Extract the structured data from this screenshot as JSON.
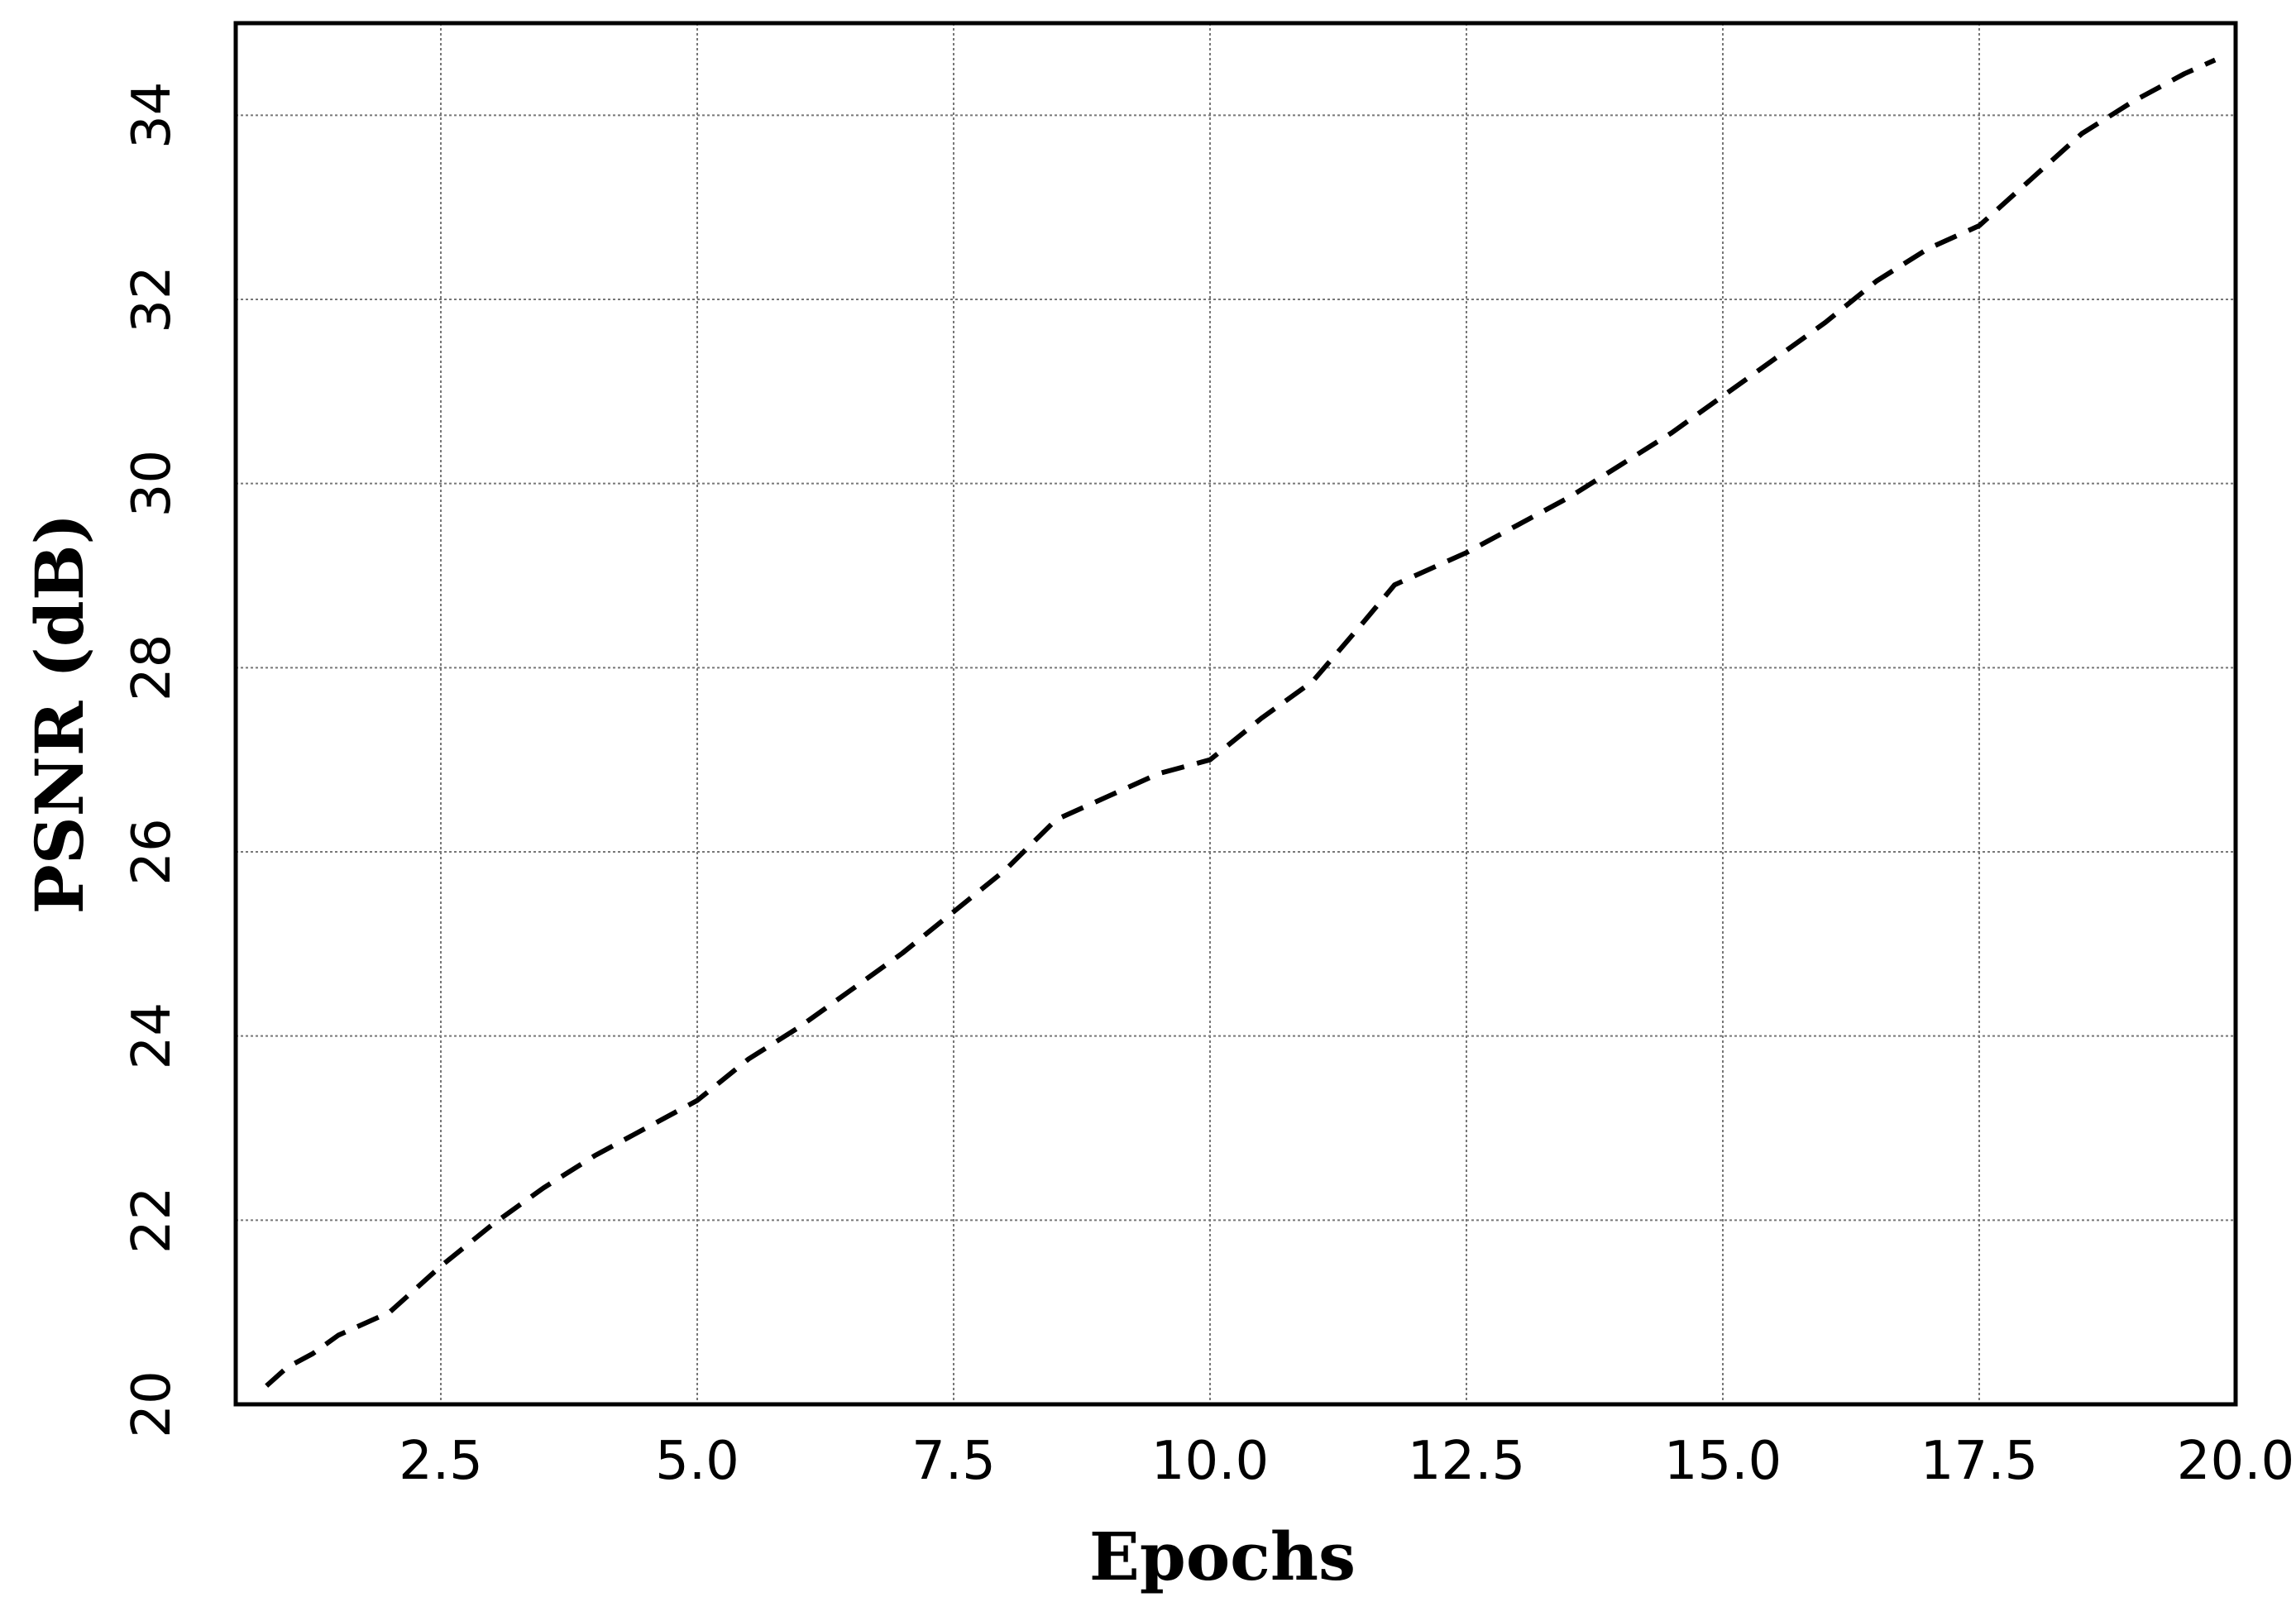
{
  "chart_data": {
    "type": "line",
    "title": "",
    "xlabel": "Epochs",
    "ylabel": "PSNR (dB)",
    "xlim": [
      0.5,
      20.0
    ],
    "ylim": [
      20,
      35
    ],
    "x_ticks": [
      2.5,
      5.0,
      7.5,
      10.0,
      12.5,
      15.0,
      17.5,
      20.0
    ],
    "x_tick_labels": [
      "2.5",
      "5.0",
      "7.5",
      "10.0",
      "12.5",
      "15.0",
      "17.5",
      "20.0"
    ],
    "y_ticks": [
      20,
      22,
      24,
      26,
      28,
      30,
      32,
      34
    ],
    "y_tick_labels": [
      "20",
      "22",
      "24",
      "26",
      "28",
      "30",
      "32",
      "34"
    ],
    "grid": true,
    "legend": "none",
    "series": [
      {
        "line_style": "dashed",
        "color": "#000000",
        "x": [
          0.8,
          1.0,
          1.25,
          1.5,
          2.0,
          2.5,
          3.0,
          3.5,
          4.0,
          4.5,
          5.0,
          5.5,
          6.0,
          6.5,
          7.0,
          7.5,
          8.0,
          8.5,
          9.0,
          9.5,
          10.0,
          10.5,
          11.0,
          11.5,
          11.8,
          12.0,
          12.5,
          13.0,
          13.5,
          14.0,
          14.5,
          15.0,
          15.5,
          16.0,
          16.5,
          17.0,
          17.5,
          18.0,
          18.5,
          19.0,
          19.5,
          19.8
        ],
        "values": [
          20.2,
          20.4,
          20.55,
          20.75,
          21.0,
          21.5,
          21.95,
          22.35,
          22.7,
          23.0,
          23.3,
          23.75,
          24.1,
          24.5,
          24.9,
          25.35,
          25.8,
          26.35,
          26.6,
          26.85,
          27.0,
          27.45,
          27.85,
          28.5,
          28.9,
          29.0,
          29.25,
          29.55,
          29.85,
          30.2,
          30.55,
          30.95,
          31.35,
          31.75,
          32.2,
          32.55,
          32.8,
          33.3,
          33.8,
          34.15,
          34.45,
          34.6
        ]
      }
    ]
  }
}
